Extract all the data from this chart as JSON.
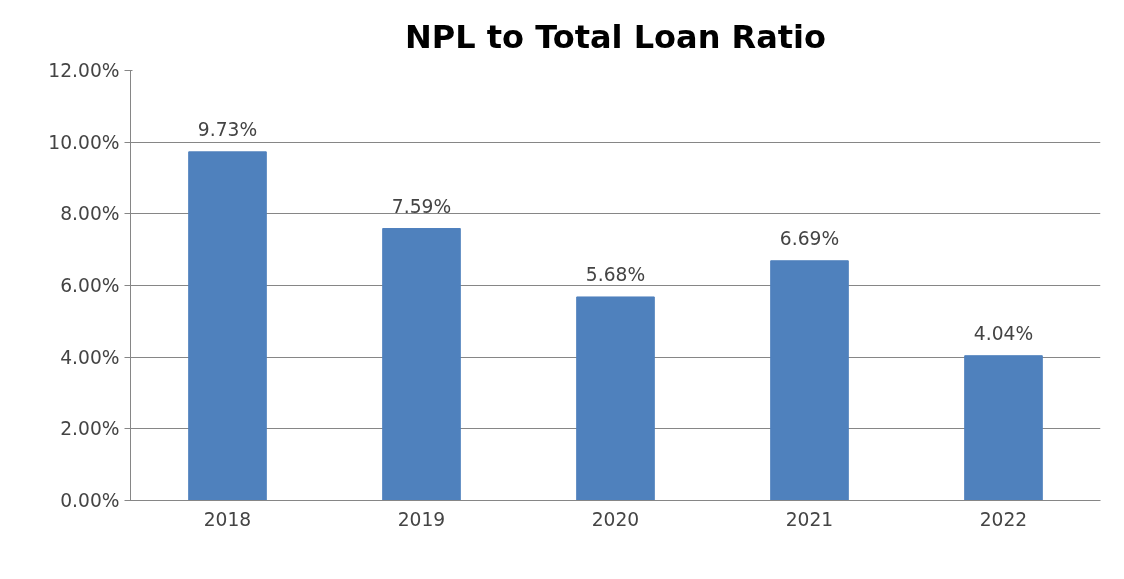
{
  "chart_data": {
    "type": "bar",
    "title": "NPL to Total Loan Ratio",
    "categories": [
      "2018",
      "2019",
      "2020",
      "2021",
      "2022"
    ],
    "values": [
      9.73,
      7.59,
      5.68,
      6.69,
      4.04
    ],
    "value_labels": [
      "9.73%",
      "7.59%",
      "5.68%",
      "6.69%",
      "4.04%"
    ],
    "color": "#4f81bd",
    "ylim": [
      0,
      12
    ],
    "yticks": [
      {
        "value": 0,
        "label": "0.00%"
      },
      {
        "value": 2,
        "label": "2.00%"
      },
      {
        "value": 4,
        "label": "4.00%"
      },
      {
        "value": 6,
        "label": "6.00%"
      },
      {
        "value": 8,
        "label": "8.00%"
      },
      {
        "value": 10,
        "label": "10.00%"
      },
      {
        "value": 12,
        "label": "12.00%"
      }
    ],
    "grid": "y"
  }
}
